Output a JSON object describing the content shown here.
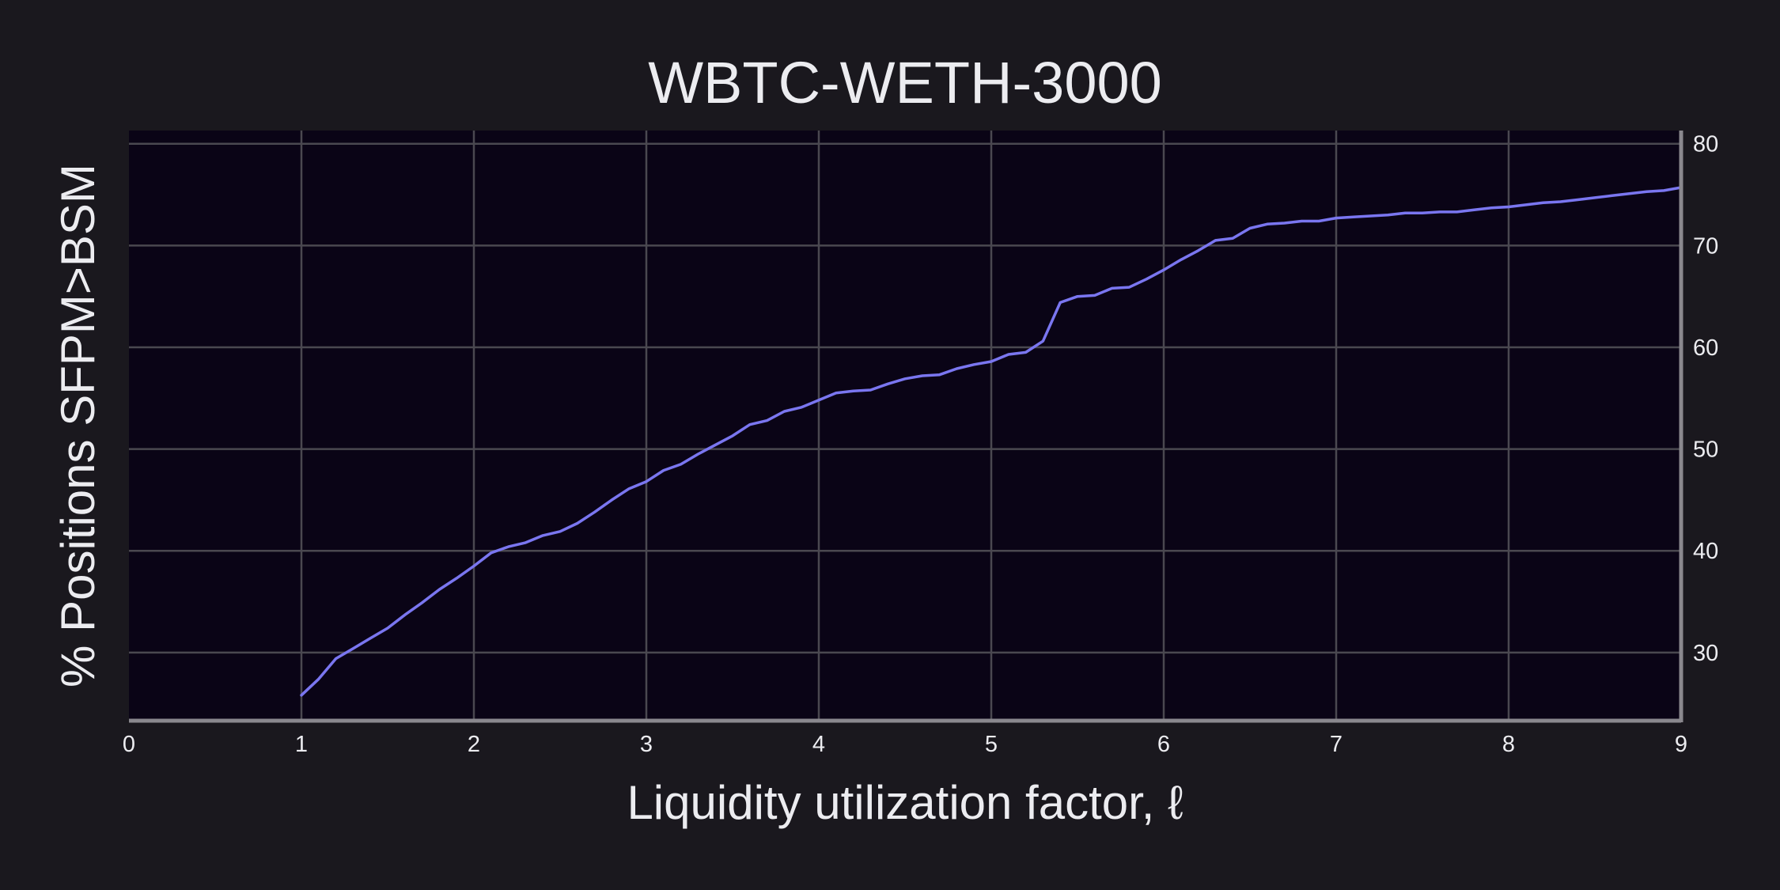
{
  "chart_data": {
    "type": "line",
    "title": "WBTC-WETH-3000",
    "xlabel": "Liquidity utilization factor, ℓ",
    "ylabel": "% Positions SFPM>BSM",
    "xlim": [
      0,
      9
    ],
    "ylim": [
      23.3,
      81.3
    ],
    "x_ticks": [
      "0",
      "1",
      "2",
      "3",
      "4",
      "5",
      "6",
      "7",
      "8",
      "9"
    ],
    "y_ticks": [
      "30",
      "40",
      "50",
      "60",
      "70",
      "80"
    ],
    "y_axis_side": "right",
    "grid": true,
    "colors": {
      "background": "#1a181e",
      "plot_background": "#0a0416",
      "line": "#7a76f0",
      "grid": "#4a4850",
      "axis": "#8a888e",
      "text": "#ececf0"
    },
    "series": [
      {
        "x": [
          1.0,
          1.1,
          1.2,
          1.3,
          1.4,
          1.5,
          1.6,
          1.7,
          1.8,
          1.9,
          2.0,
          2.1,
          2.2,
          2.3,
          2.4,
          2.5,
          2.6,
          2.7,
          2.8,
          2.9,
          3.0,
          3.1,
          3.2,
          3.3,
          3.4,
          3.5,
          3.6,
          3.7,
          3.8,
          3.9,
          4.0,
          4.1,
          4.2,
          4.3,
          4.4,
          4.5,
          4.6,
          4.7,
          4.8,
          4.9,
          5.0,
          5.1,
          5.2,
          5.3,
          5.4,
          5.5,
          5.6,
          5.7,
          5.8,
          5.9,
          6.0,
          6.1,
          6.2,
          6.3,
          6.4,
          6.5,
          6.6,
          6.7,
          6.8,
          6.9,
          7.0,
          7.1,
          7.2,
          7.3,
          7.4,
          7.5,
          7.6,
          7.7,
          7.8,
          7.9,
          8.0,
          8.1,
          8.2,
          8.3,
          8.4,
          8.5,
          8.6,
          8.7,
          8.8,
          8.9,
          9.0
        ],
        "values": [
          25.8,
          27.4,
          29.4,
          30.4,
          31.4,
          32.4,
          33.7,
          34.9,
          36.2,
          37.3,
          38.5,
          39.8,
          40.4,
          40.8,
          41.5,
          41.9,
          42.7,
          43.8,
          45.0,
          46.1,
          46.8,
          47.9,
          48.5,
          49.5,
          50.4,
          51.3,
          52.4,
          52.8,
          53.7,
          54.1,
          54.8,
          55.5,
          55.7,
          55.8,
          56.4,
          56.9,
          57.2,
          57.3,
          57.9,
          58.3,
          58.6,
          59.3,
          59.5,
          60.6,
          64.4,
          65.0,
          65.1,
          65.8,
          65.9,
          66.7,
          67.6,
          68.6,
          69.5,
          70.5,
          70.7,
          71.7,
          72.1,
          72.2,
          72.4,
          72.4,
          72.7,
          72.8,
          72.9,
          73.0,
          73.2,
          73.2,
          73.3,
          73.3,
          73.5,
          73.7,
          73.8,
          74.0,
          74.2,
          74.3,
          74.5,
          74.7,
          74.9,
          75.1,
          75.3,
          75.4,
          75.7
        ]
      }
    ]
  }
}
